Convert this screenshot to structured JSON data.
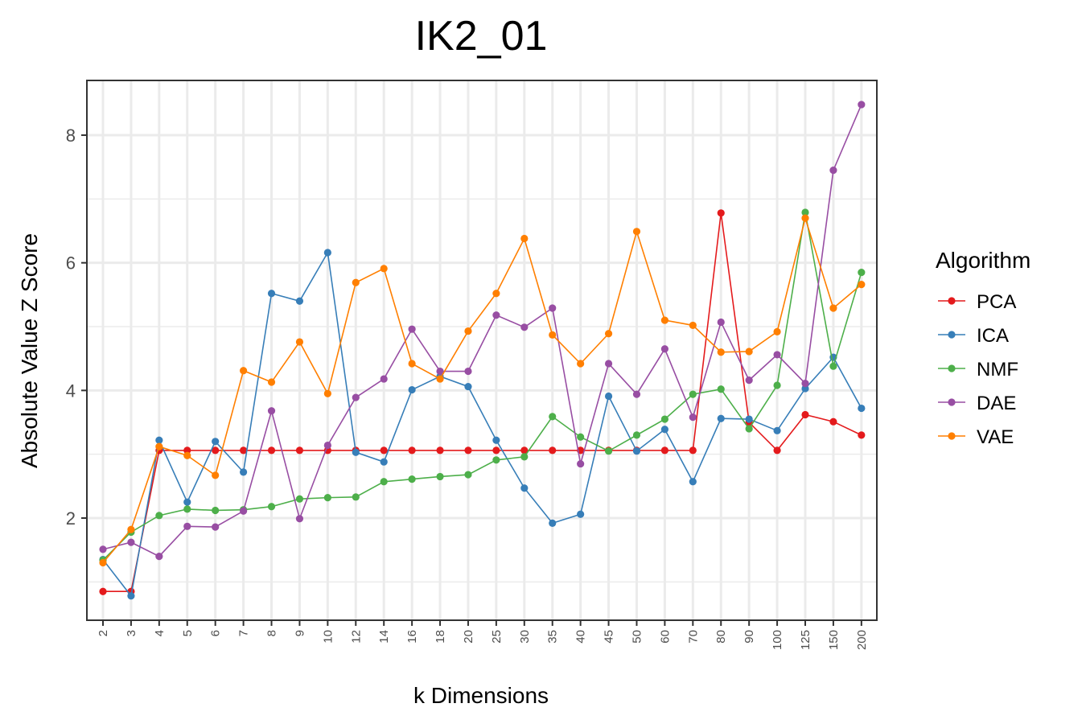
{
  "chart_data": {
    "type": "line",
    "title": "IK2_01",
    "xlabel": "k Dimensions",
    "ylabel": "Absolute Value Z Score",
    "categories": [
      "2",
      "3",
      "4",
      "5",
      "6",
      "7",
      "8",
      "9",
      "10",
      "12",
      "14",
      "16",
      "18",
      "20",
      "25",
      "30",
      "35",
      "40",
      "45",
      "50",
      "60",
      "70",
      "80",
      "90",
      "100",
      "125",
      "150",
      "200"
    ],
    "yticks": [
      2,
      4,
      6,
      8
    ],
    "ylim": [
      0.5,
      8.85
    ],
    "grid": true,
    "legend": {
      "title": "Algorithm",
      "position": "right"
    },
    "series": [
      {
        "name": "PCA",
        "color": "#e41a1c",
        "values": [
          0.85,
          0.85,
          3.06,
          3.06,
          3.06,
          3.06,
          3.06,
          3.06,
          3.06,
          3.06,
          3.06,
          3.06,
          3.06,
          3.06,
          3.06,
          3.06,
          3.06,
          3.06,
          3.06,
          3.06,
          3.06,
          3.06,
          6.78,
          3.5,
          3.06,
          3.62,
          3.51,
          3.3
        ]
      },
      {
        "name": "ICA",
        "color": "#377eb8",
        "values": [
          1.35,
          0.78,
          3.22,
          2.25,
          3.2,
          2.72,
          5.52,
          5.4,
          6.16,
          3.03,
          2.88,
          4.01,
          4.22,
          4.06,
          3.22,
          2.47,
          1.92,
          2.06,
          3.91,
          3.05,
          3.39,
          2.57,
          3.56,
          3.55,
          3.37,
          4.03,
          4.52,
          3.72
        ]
      },
      {
        "name": "NMF",
        "color": "#4daf4a",
        "values": [
          1.34,
          1.78,
          2.04,
          2.14,
          2.12,
          2.13,
          2.18,
          2.3,
          2.32,
          2.33,
          2.57,
          2.61,
          2.65,
          2.68,
          2.91,
          2.96,
          3.59,
          3.27,
          3.05,
          3.3,
          3.55,
          3.94,
          4.02,
          3.4,
          4.08,
          6.79,
          4.38,
          5.85
        ]
      },
      {
        "name": "DAE",
        "color": "#984ea3",
        "values": [
          1.51,
          1.62,
          1.4,
          1.87,
          1.86,
          2.11,
          3.68,
          1.99,
          3.14,
          3.89,
          4.18,
          4.96,
          4.3,
          4.3,
          5.18,
          4.99,
          5.29,
          2.85,
          4.42,
          3.94,
          4.65,
          3.58,
          5.07,
          4.16,
          4.56,
          4.11,
          7.45,
          8.48
        ]
      },
      {
        "name": "VAE",
        "color": "#ff7f00",
        "values": [
          1.3,
          1.82,
          3.12,
          2.98,
          2.67,
          4.31,
          4.13,
          4.76,
          3.95,
          5.69,
          5.91,
          4.42,
          4.18,
          4.93,
          5.52,
          6.38,
          4.87,
          4.42,
          4.89,
          6.49,
          5.1,
          5.02,
          4.6,
          4.61,
          4.92,
          6.7,
          5.29,
          5.66
        ]
      }
    ]
  }
}
